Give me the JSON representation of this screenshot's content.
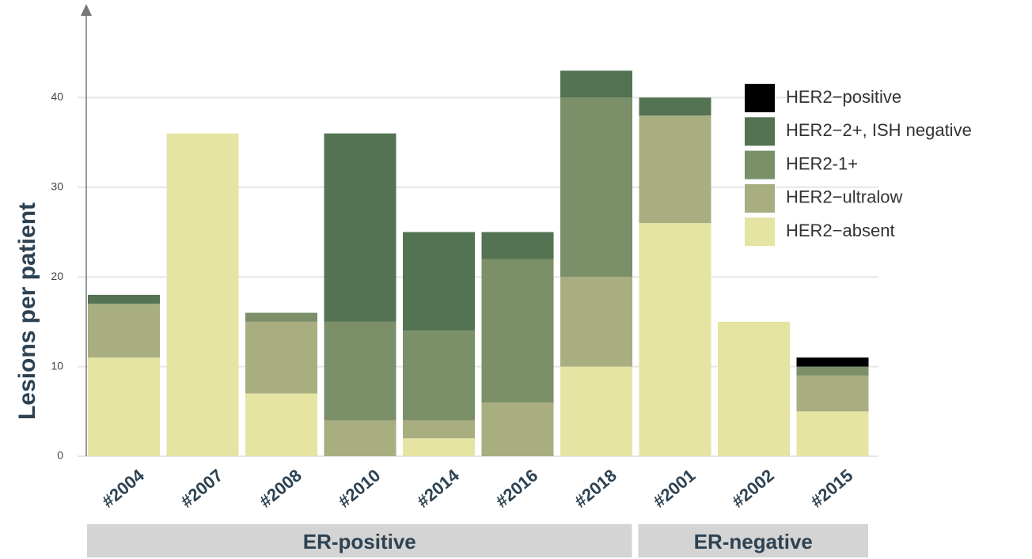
{
  "chart_data": {
    "type": "stacked_bar",
    "y_label": "Lesions per patient",
    "categories": [
      "#2004",
      "#2007",
      "#2008",
      "#2010",
      "#2014",
      "#2016",
      "#2018",
      "#2001",
      "#2002",
      "#2015"
    ],
    "series": [
      {
        "name": "HER2−absent",
        "color": "#e5e4a3",
        "values": [
          11,
          36,
          7,
          0,
          2,
          0,
          10,
          26,
          15,
          5
        ]
      },
      {
        "name": "HER2−ultralow",
        "color": "#a8ae80",
        "values": [
          6,
          0,
          8,
          4,
          2,
          6,
          10,
          12,
          0,
          4
        ]
      },
      {
        "name": "HER2-1+",
        "color": "#7b8f69",
        "values": [
          0,
          0,
          1,
          11,
          10,
          16,
          20,
          0,
          0,
          1
        ]
      },
      {
        "name": "HER2−2+, ISH negative",
        "color": "#537352",
        "values": [
          1,
          0,
          0,
          21,
          11,
          3,
          3,
          2,
          0,
          0
        ]
      },
      {
        "name": "HER2−positive",
        "color": "#000000",
        "values": [
          0,
          0,
          0,
          0,
          0,
          0,
          0,
          0,
          0,
          1
        ]
      }
    ],
    "groups": [
      {
        "label": "ER-positive",
        "members": [
          "#2004",
          "#2007",
          "#2008",
          "#2010",
          "#2014",
          "#2016",
          "#2018"
        ]
      },
      {
        "label": "ER-negative",
        "members": [
          "#2001",
          "#2002",
          "#2015"
        ]
      }
    ],
    "ylim": [
      0,
      50
    ],
    "yticks": [
      0,
      10,
      20,
      30,
      40
    ],
    "grid": true,
    "legend": "upper right"
  }
}
